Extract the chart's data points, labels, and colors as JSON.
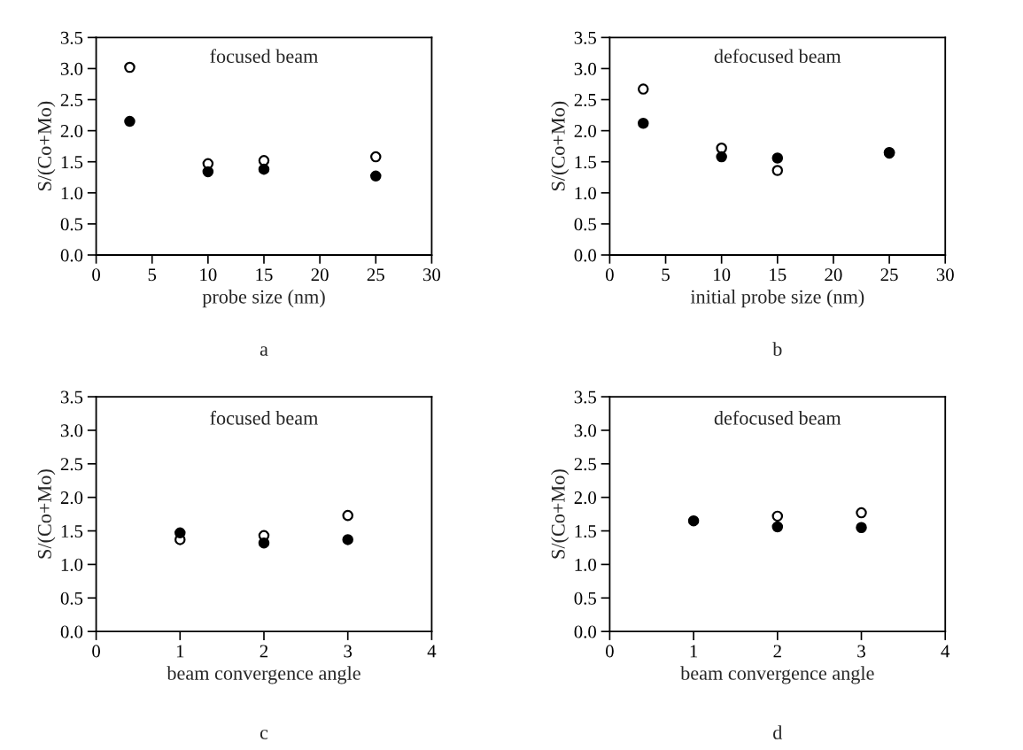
{
  "chart_data": [
    {
      "type": "scatter",
      "title": "focused beam",
      "xlabel": "probe size (nm)",
      "ylabel": "S/(Co+Mo)",
      "annotations": [
        "a"
      ],
      "xlim": [
        0,
        30
      ],
      "xticks": [
        0,
        5,
        10,
        15,
        20,
        25,
        30
      ],
      "ylim": [
        0,
        3.5
      ],
      "yticks": [
        {
          "value": 0,
          "label": "0.0"
        },
        0.5,
        {
          "value": 1,
          "label": "1.0"
        },
        1.5,
        {
          "value": 2,
          "label": "2.0"
        },
        2.5,
        {
          "value": 3,
          "label": "3.0"
        },
        3.5
      ],
      "grid": false,
      "marker": "circle",
      "x": [
        3,
        10,
        15,
        25
      ],
      "series": [
        {
          "color": "#ffffff",
          "values": [
            3.02,
            1.47,
            1.52,
            1.58
          ]
        },
        {
          "color": "#000000",
          "values": [
            2.15,
            1.34,
            1.38,
            1.27
          ]
        }
      ]
    },
    {
      "type": "scatter",
      "title": "defocused beam",
      "xlabel": "initial probe size (nm)",
      "ylabel": "S/(Co+Mo)",
      "annotations": [
        "b"
      ],
      "xlim": [
        0,
        30
      ],
      "xticks": [
        0,
        5,
        10,
        15,
        20,
        25,
        30
      ],
      "ylim": [
        0,
        3.5
      ],
      "yticks": [
        {
          "value": 0,
          "label": "0.0"
        },
        0.5,
        {
          "value": 1,
          "label": "1.0"
        },
        1.5,
        {
          "value": 2,
          "label": "2.0"
        },
        2.5,
        {
          "value": 3,
          "label": "3.0"
        },
        3.5
      ],
      "grid": false,
      "marker": "circle",
      "x": [
        3,
        10,
        15,
        25
      ],
      "series": [
        {
          "color": "#ffffff",
          "values": [
            2.67,
            1.72,
            1.36,
            1.65
          ]
        },
        {
          "color": "#000000",
          "values": [
            2.12,
            1.58,
            1.56,
            1.64
          ]
        }
      ]
    },
    {
      "type": "scatter",
      "title": "focused beam",
      "xlabel": "beam convergence angle",
      "ylabel": "S/(Co+Mo)",
      "annotations": [
        "c"
      ],
      "xlim": [
        0,
        4
      ],
      "xticks": [
        0,
        1,
        2,
        3,
        4
      ],
      "ylim": [
        0,
        3.5
      ],
      "yticks": [
        {
          "value": 0,
          "label": "0.0"
        },
        0.5,
        {
          "value": 1,
          "label": "1.0"
        },
        1.5,
        {
          "value": 2,
          "label": "2.0"
        },
        2.5,
        {
          "value": 3,
          "label": "3.0"
        },
        3.5
      ],
      "grid": false,
      "marker": "circle",
      "x": [
        1,
        2,
        3
      ],
      "series": [
        {
          "color": "#ffffff",
          "values": [
            1.37,
            1.43,
            1.73
          ]
        },
        {
          "color": "#000000",
          "values": [
            1.47,
            1.32,
            1.37
          ]
        }
      ]
    },
    {
      "type": "scatter",
      "title": "defocused beam",
      "xlabel": "beam convergence angle",
      "ylabel": "S/(Co+Mo)",
      "annotations": [
        "d"
      ],
      "xlim": [
        0,
        4
      ],
      "xticks": [
        0,
        1,
        2,
        3,
        4
      ],
      "ylim": [
        0,
        3.5
      ],
      "yticks": [
        {
          "value": 0,
          "label": "0.0"
        },
        0.5,
        {
          "value": 1,
          "label": "1.0"
        },
        1.5,
        {
          "value": 2,
          "label": "2.0"
        },
        2.5,
        {
          "value": 3,
          "label": "3.0"
        },
        3.5
      ],
      "grid": false,
      "marker": "circle",
      "x": [
        1,
        2,
        3
      ],
      "series": [
        {
          "color": "#ffffff",
          "values": [
            null,
            1.72,
            1.77
          ]
        },
        {
          "color": "#000000",
          "values": [
            1.65,
            1.56,
            1.55
          ]
        }
      ]
    }
  ]
}
